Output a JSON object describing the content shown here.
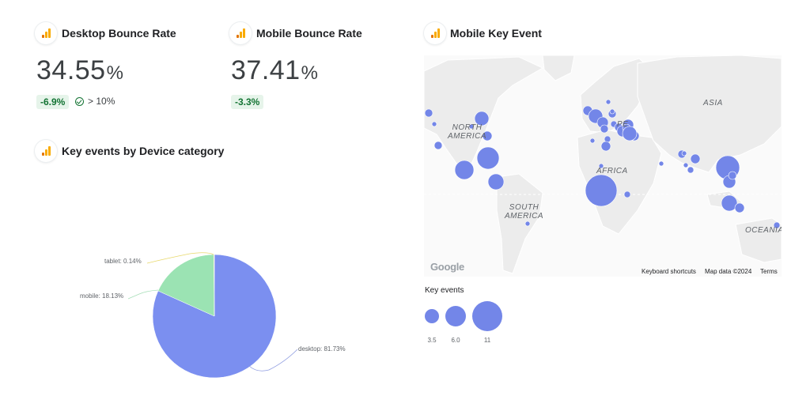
{
  "desktop_bounce": {
    "title": "Desktop Bounce Rate",
    "value": "34.55",
    "unit": "%",
    "delta": "-6.9%",
    "target": "> 10%"
  },
  "mobile_bounce": {
    "title": "Mobile Bounce Rate",
    "value": "37.41",
    "unit": "%",
    "delta": "-3.3%"
  },
  "device_chart": {
    "title": "Key events by Device category"
  },
  "map_card": {
    "title": "Mobile Key Event",
    "continents": [
      "NORTH",
      "AMERICA",
      "SOUTH",
      "AMERICA",
      "AFRICA",
      "ASIA",
      "OCEANIA"
    ],
    "europe_fragment": "PE",
    "google": "Google",
    "footer": {
      "shortcuts": "Keyboard shortcuts",
      "map_data": "Map data ©2024",
      "terms": "Terms"
    },
    "legend": {
      "title": "Key events",
      "sizes": [
        "3.5",
        "6.0",
        "11"
      ]
    }
  },
  "colors": {
    "accent_bar_dark": "#e37400",
    "accent_bar": "#f9ab00",
    "positive": "#137333",
    "positive_bg": "#e6f4ea",
    "desktop": "#7b8ff0",
    "mobile": "#9be3b3",
    "tablet": "#f0e27a",
    "bubble": "#7386e8"
  },
  "chart_data": {
    "type": "pie",
    "title": "Key events by Device category",
    "slices": [
      {
        "name": "desktop",
        "value": 81.73,
        "label": "desktop: 81.73%"
      },
      {
        "name": "mobile",
        "value": 18.13,
        "label": "mobile: 18.13%"
      },
      {
        "name": "tablet",
        "value": 0.14,
        "label": "tablet: 0.14%"
      }
    ]
  }
}
